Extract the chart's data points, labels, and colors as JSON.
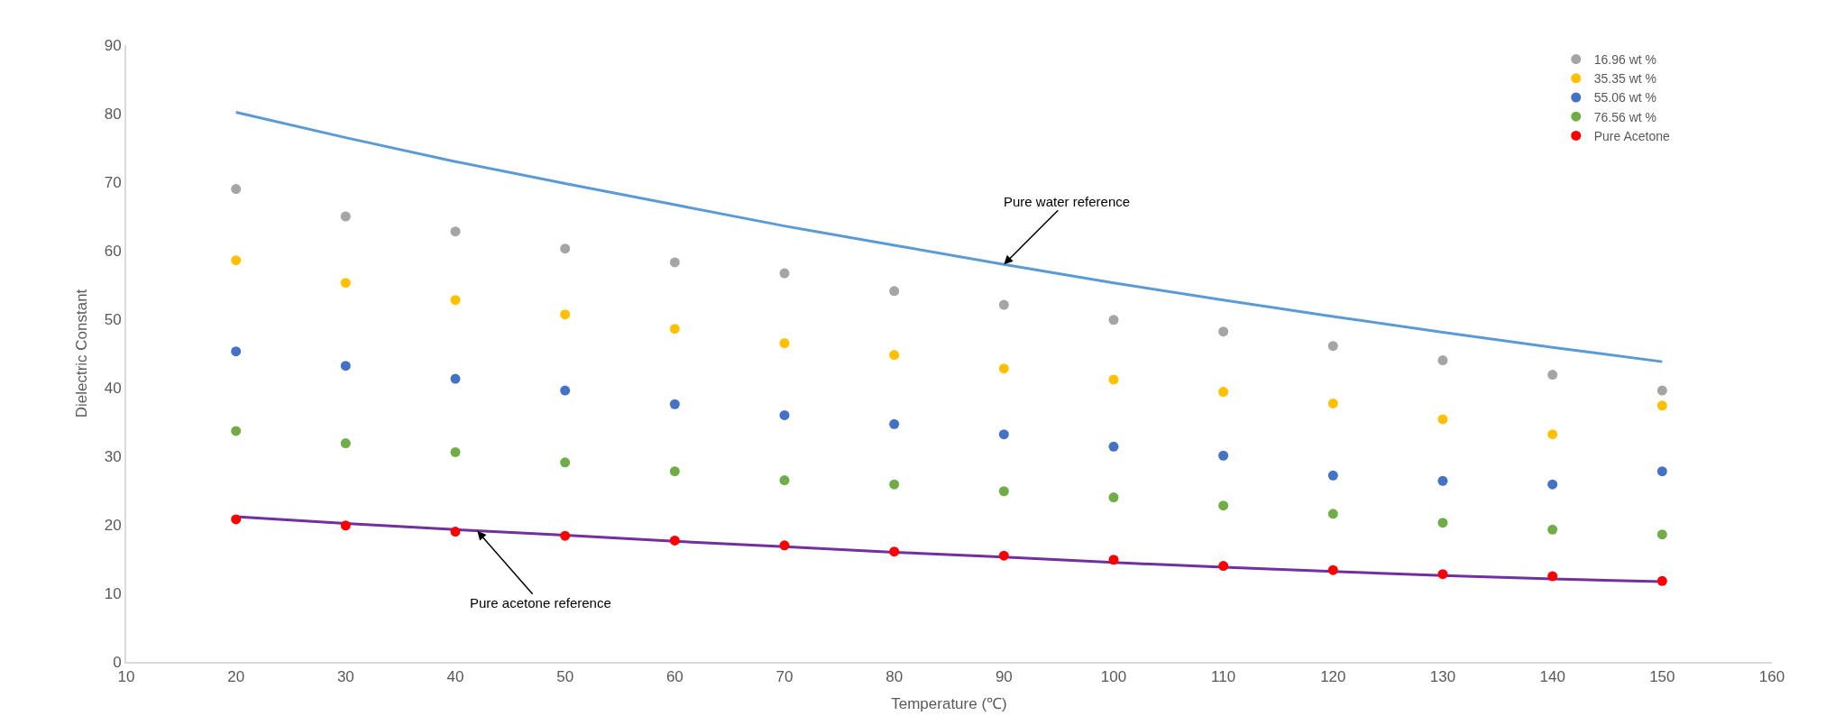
{
  "chart_data": {
    "type": "scatter",
    "xlabel": "Temperature (℃)",
    "ylabel": "Dielectric Constant",
    "x": [
      20,
      30,
      40,
      50,
      60,
      70,
      80,
      90,
      100,
      110,
      120,
      130,
      140,
      150
    ],
    "xlim": [
      10,
      160
    ],
    "xticks": [
      10,
      20,
      30,
      40,
      50,
      60,
      70,
      80,
      90,
      100,
      110,
      120,
      130,
      140,
      150,
      160
    ],
    "ylim": [
      0,
      90
    ],
    "yticks": [
      0,
      10,
      20,
      30,
      40,
      50,
      60,
      70,
      80,
      90
    ],
    "grid": false,
    "legend": "top right",
    "marker": "circle",
    "series": [
      {
        "type": "line",
        "color": "#5b9bd5",
        "line_style": "solid",
        "marker": "none",
        "values": [
          80.2,
          76.5,
          73.0,
          69.8,
          66.7,
          63.6,
          60.8,
          58.0,
          55.3,
          52.8,
          50.4,
          48.1,
          45.9,
          43.8
        ]
      },
      {
        "type": "line",
        "color": "#7030a0",
        "line_style": "solid",
        "marker": "none",
        "values": [
          21.2,
          20.2,
          19.3,
          18.5,
          17.6,
          16.8,
          16.0,
          15.3,
          14.5,
          13.8,
          13.2,
          12.6,
          12.1,
          11.7
        ]
      },
      {
        "name": "16.96 wt %",
        "color": "#a5a5a5",
        "values": [
          69.0,
          65.0,
          62.8,
          60.3,
          58.3,
          56.7,
          54.1,
          52.1,
          49.9,
          48.2,
          46.1,
          44.0,
          41.9,
          39.6
        ]
      },
      {
        "name": "35.35 wt %",
        "color": "#ffc000",
        "values": [
          58.6,
          55.3,
          52.8,
          50.7,
          48.6,
          46.5,
          44.8,
          42.8,
          41.2,
          39.4,
          37.7,
          35.4,
          33.2,
          37.4
        ]
      },
      {
        "name": "55.06 wt %",
        "color": "#4472c4",
        "values": [
          45.3,
          43.2,
          41.3,
          39.6,
          37.6,
          36.0,
          34.7,
          33.2,
          31.4,
          30.1,
          27.2,
          26.4,
          25.9,
          27.8
        ]
      },
      {
        "name": "76.56 wt %",
        "color": "#70ad47",
        "values": [
          33.7,
          31.9,
          30.6,
          29.1,
          27.8,
          26.5,
          25.9,
          24.9,
          24.0,
          22.8,
          21.6,
          20.3,
          19.3,
          18.6
        ]
      },
      {
        "name": "Pure Acetone",
        "color": "#ff0000",
        "values": [
          20.8,
          19.9,
          19.0,
          18.4,
          17.7,
          17.0,
          16.1,
          15.5,
          14.9,
          14.0,
          13.4,
          12.8,
          12.5,
          11.8
        ]
      }
    ],
    "annotations": [
      {
        "text": "Pure water reference",
        "x": 90,
        "y": 58.0
      },
      {
        "text": "Pure acetone reference",
        "x": 42,
        "y": 19.1
      }
    ]
  }
}
